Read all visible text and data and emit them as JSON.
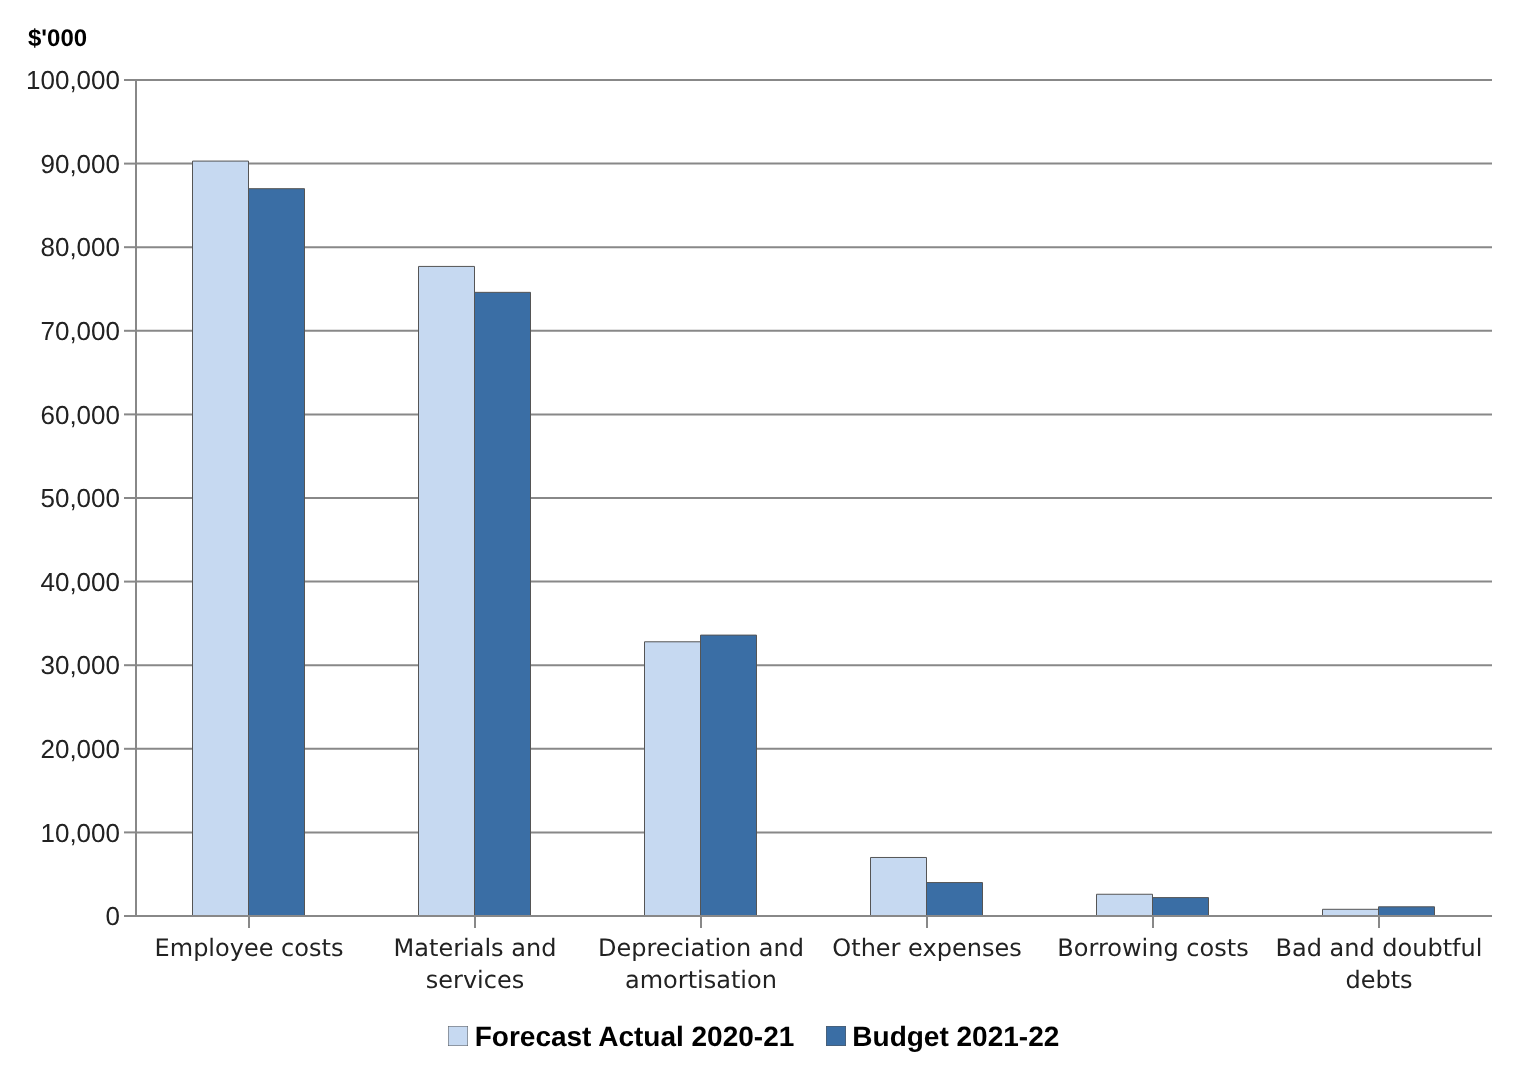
{
  "chart_data": {
    "type": "bar",
    "ylabel": "$'000",
    "categories": [
      "Employee costs",
      "Materials and services",
      "Depreciation and amortisation",
      "Other expenses",
      "Borrowing costs",
      "Bad and doubtful debts"
    ],
    "series": [
      {
        "name": "Forecast Actual 2020-21",
        "color": "#c6d9f1",
        "values": [
          90300,
          77700,
          32800,
          7000,
          2600,
          800
        ]
      },
      {
        "name": "Budget 2021-22",
        "color": "#3a6ea5",
        "values": [
          87000,
          74600,
          33600,
          4000,
          2200,
          1100
        ]
      }
    ],
    "ylim": [
      0,
      100000
    ],
    "yticks": [
      0,
      {
        "value": 10000,
        "label": "10,000"
      },
      {
        "value": 20000,
        "label": "20,000"
      },
      {
        "value": 30000,
        "label": "30,000"
      },
      {
        "value": 40000,
        "label": "40,000"
      },
      {
        "value": 50000,
        "label": "50,000"
      },
      {
        "value": 60000,
        "label": "60,000"
      },
      {
        "value": 70000,
        "label": "70,000"
      },
      {
        "value": 80000,
        "label": "80,000"
      },
      {
        "value": 90000,
        "label": "90,000"
      },
      {
        "value": 100000,
        "label": "100,000"
      }
    ],
    "grid": "y",
    "legend": "bottom"
  }
}
